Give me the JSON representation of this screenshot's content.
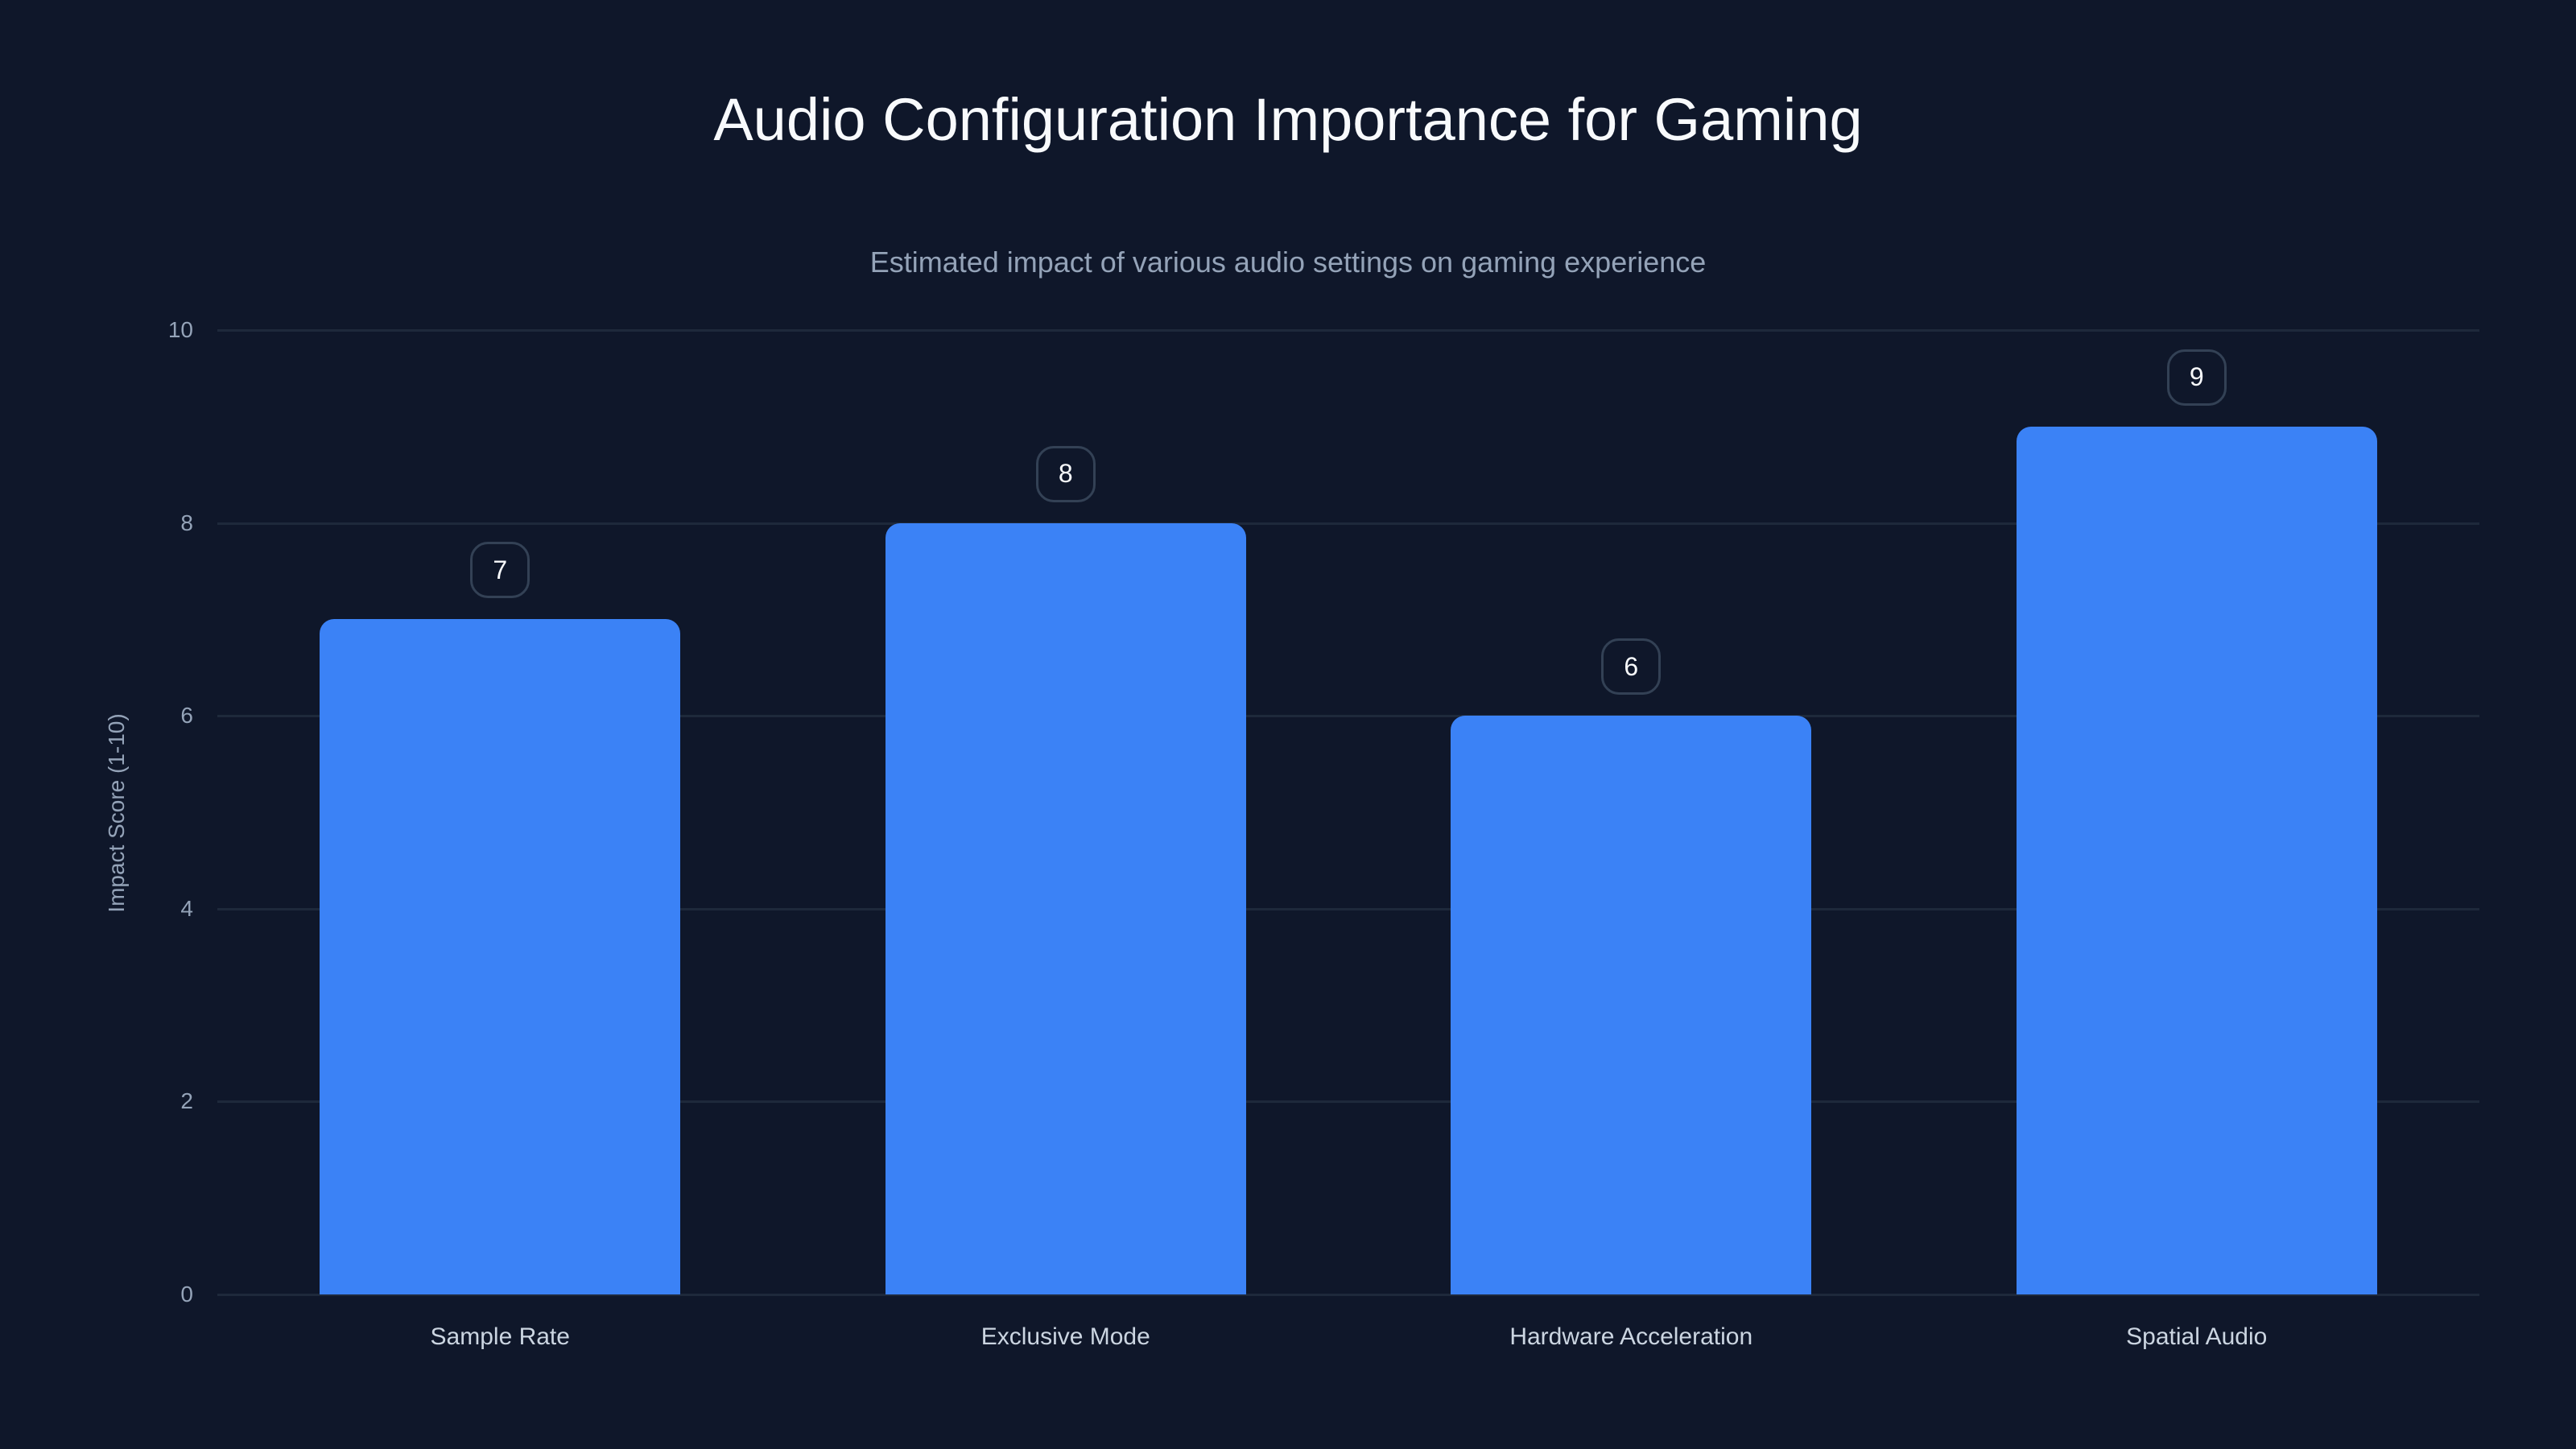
{
  "chart_data": {
    "type": "bar",
    "title": "Audio Configuration Importance for Gaming",
    "subtitle": "Estimated impact of various audio settings on gaming experience",
    "xlabel": "",
    "ylabel": "Impact Score (1-10)",
    "ylim": [
      0,
      10
    ],
    "yticks": [
      "0",
      "2",
      "4",
      "6",
      "8",
      "10"
    ],
    "grid": true,
    "legend": null,
    "categories": [
      "Sample Rate",
      "Exclusive Mode",
      "Hardware Acceleration",
      "Spatial Audio"
    ],
    "values": [
      7,
      8,
      6,
      9
    ],
    "value_labels": [
      "7",
      "8",
      "6",
      "9"
    ],
    "colors": {
      "bar": "#3b82f6",
      "background": "#0f172a",
      "grid": "#1e293b"
    }
  }
}
